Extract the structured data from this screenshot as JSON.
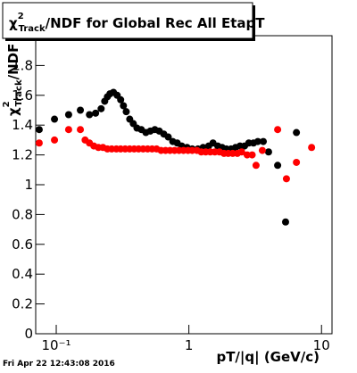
{
  "chart_data": {
    "type": "scatter",
    "title": {
      "symbol": "χ",
      "sup": "2",
      "sub": "Track",
      "rest": "/NDF for Global Rec All EtapT"
    },
    "y_label": {
      "symbol": "χ",
      "sup": "2",
      "sub": "Track",
      "rest": "/NDF"
    },
    "x_label": "pT/|q| (GeV/c)",
    "footer": "Fri Apr 22 12:43:08 2016",
    "logx": true,
    "xlim": [
      0.07,
      12
    ],
    "ylim": [
      0,
      2
    ],
    "xticks": [
      {
        "value": 0.1,
        "label": "10⁻¹"
      },
      1,
      10
    ],
    "yticks": [
      0,
      0.2,
      0.4,
      0.6,
      0.8,
      1,
      1.2,
      1.4,
      1.6,
      1.8
    ],
    "series": [
      {
        "color": "#000000",
        "x": [
          0.0744,
          0.097,
          0.124,
          0.152,
          0.178,
          0.198,
          0.218,
          0.232,
          0.243,
          0.254,
          0.27,
          0.288,
          0.306,
          0.321,
          0.337,
          0.358,
          0.381,
          0.406,
          0.438,
          0.474,
          0.512,
          0.554,
          0.598,
          0.647,
          0.699,
          0.756,
          0.817,
          0.883,
          0.969,
          1.06,
          1.17,
          1.28,
          1.41,
          1.52,
          1.65,
          1.78,
          1.92,
          2.08,
          2.25,
          2.43,
          2.63,
          2.83,
          3.07,
          3.31,
          3.64,
          3.99,
          4.67,
          5.36,
          6.47
        ],
        "values": [
          1.37,
          1.44,
          1.47,
          1.5,
          1.47,
          1.48,
          1.51,
          1.56,
          1.59,
          1.61,
          1.62,
          1.6,
          1.57,
          1.53,
          1.49,
          1.44,
          1.41,
          1.38,
          1.37,
          1.35,
          1.36,
          1.37,
          1.36,
          1.34,
          1.32,
          1.29,
          1.28,
          1.26,
          1.25,
          1.24,
          1.24,
          1.25,
          1.26,
          1.28,
          1.26,
          1.25,
          1.24,
          1.24,
          1.25,
          1.26,
          1.26,
          1.28,
          1.28,
          1.29,
          1.29,
          1.22,
          1.13,
          0.75,
          1.35
        ]
      },
      {
        "color": "#ff0000",
        "x": [
          0.0744,
          0.097,
          0.124,
          0.152,
          0.165,
          0.178,
          0.192,
          0.208,
          0.225,
          0.243,
          0.262,
          0.284,
          0.306,
          0.331,
          0.358,
          0.387,
          0.418,
          0.452,
          0.489,
          0.528,
          0.571,
          0.617,
          0.667,
          0.721,
          0.78,
          0.843,
          0.911,
          0.985,
          1.06,
          1.15,
          1.24,
          1.34,
          1.45,
          1.57,
          1.7,
          1.84,
          1.98,
          2.14,
          2.32,
          2.5,
          2.75,
          3.0,
          3.21,
          3.58,
          4.67,
          5.44,
          6.47,
          8.42
        ],
        "values": [
          1.28,
          1.3,
          1.37,
          1.37,
          1.3,
          1.28,
          1.26,
          1.25,
          1.25,
          1.24,
          1.24,
          1.24,
          1.24,
          1.24,
          1.24,
          1.24,
          1.24,
          1.24,
          1.24,
          1.24,
          1.24,
          1.23,
          1.23,
          1.23,
          1.23,
          1.23,
          1.23,
          1.23,
          1.23,
          1.23,
          1.22,
          1.22,
          1.22,
          1.22,
          1.22,
          1.21,
          1.21,
          1.21,
          1.21,
          1.22,
          1.2,
          1.2,
          1.13,
          1.23,
          1.37,
          1.04,
          1.15,
          1.25
        ]
      }
    ]
  }
}
